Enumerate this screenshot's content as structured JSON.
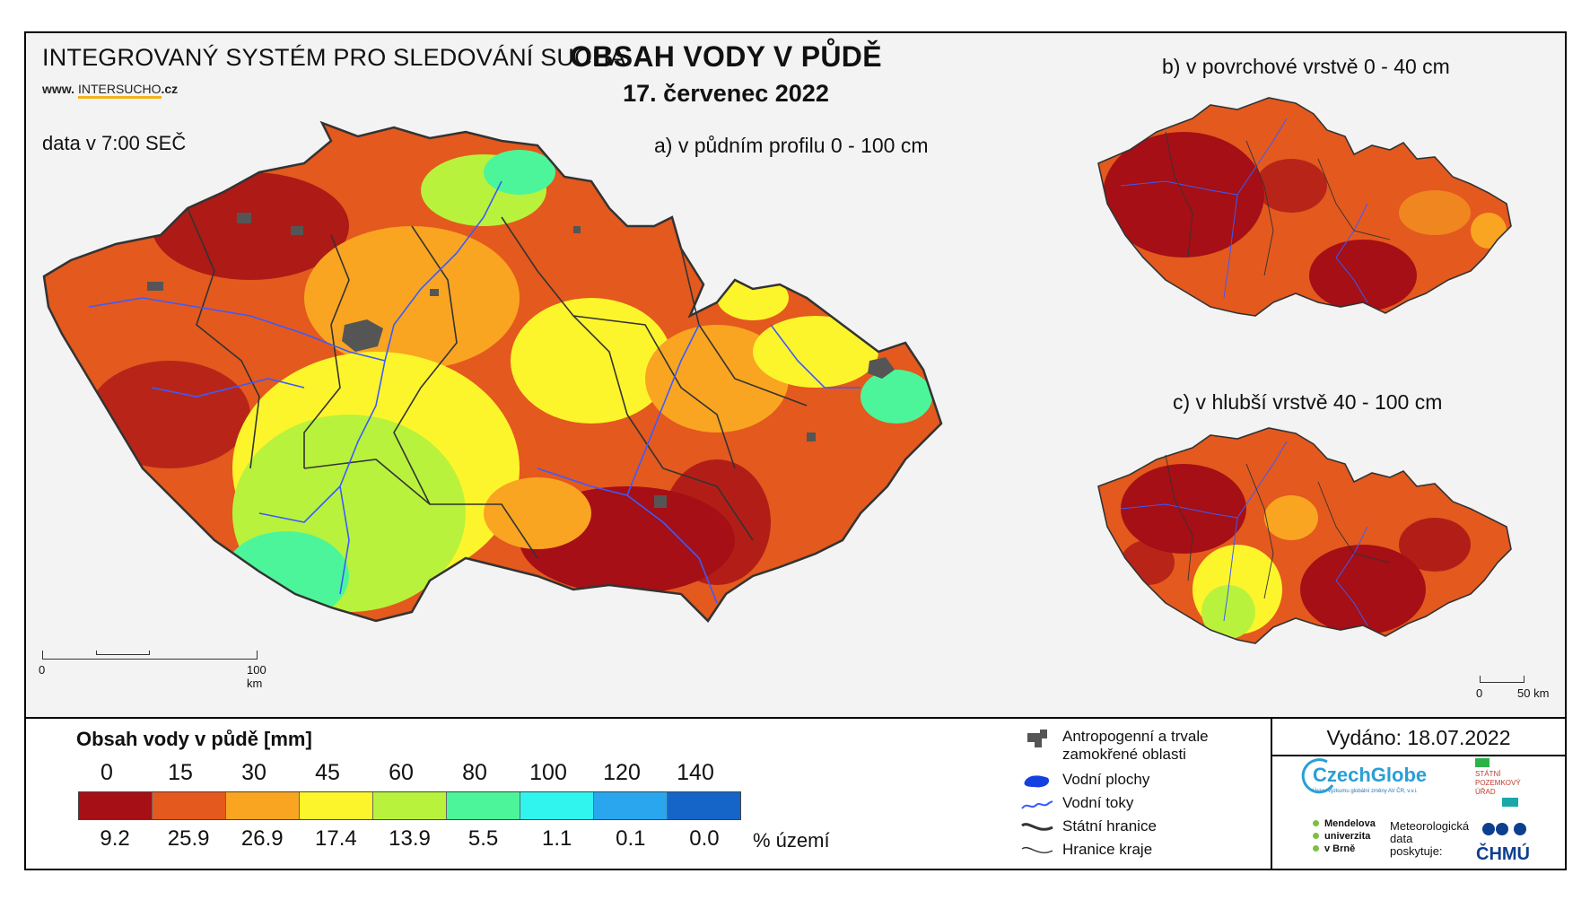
{
  "header": {
    "system_title": "INTEGROVANÝ SYSTÉM PRO SLEDOVÁNÍ SUCHA",
    "website_prefix": "www. ",
    "website_brand": "INTERSUCHO",
    "website_suffix": ".cz",
    "data_time": "data v 7:00 SEČ",
    "title": "OBSAH VODY V PŮDĚ",
    "date": "17. červenec 2022"
  },
  "maps": {
    "a_label": "a) v půdním profilu 0 - 100 cm",
    "b_label": "b) v povrchové vrstvě 0 - 40 cm",
    "c_label": "c) v hlubší vrstvě 40 - 100 cm"
  },
  "scale_main": {
    "start": "0",
    "end": "100 km"
  },
  "scale_small": {
    "start": "0",
    "end": "50 km"
  },
  "legend": {
    "title": "Obsah vody v půdě  [mm]",
    "ticks": [
      "0",
      "15",
      "30",
      "45",
      "60",
      "80",
      "100",
      "120",
      "140"
    ],
    "classes": [
      {
        "color": "#a50f15",
        "percent": "9.2"
      },
      {
        "color": "#e4591e",
        "percent": "25.9"
      },
      {
        "color": "#f9a521",
        "percent": "26.9"
      },
      {
        "color": "#fdf52c",
        "percent": "17.4"
      },
      {
        "color": "#b9f23c",
        "percent": "13.9"
      },
      {
        "color": "#4df59a",
        "percent": "5.5"
      },
      {
        "color": "#2ff5ee",
        "percent": "1.1"
      },
      {
        "color": "#2aa6ee",
        "percent": "0.1"
      },
      {
        "color": "#1565c9",
        "percent": "0.0"
      }
    ],
    "unit_label": "% území"
  },
  "symbols": [
    {
      "icon": "anthropogenic-area-icon",
      "label": "Antropogenní a trvale zamokřené oblasti"
    },
    {
      "icon": "water-body-icon",
      "label": "Vodní plochy"
    },
    {
      "icon": "river-icon",
      "label": "Vodní toky"
    },
    {
      "icon": "state-border-icon",
      "label": "Státní hranice"
    },
    {
      "icon": "region-border-icon",
      "label": "Hranice kraje"
    }
  ],
  "issued": "Vydáno: 18.07.2022",
  "logos": {
    "czechglobe": "CzechGlobe",
    "czechglobe_sub": "Ústav výzkumu globální změny AV ČR, v.v.i.",
    "spu": [
      "STÁTNÍ",
      "POZEMKOVÝ",
      "ÚŘAD"
    ],
    "mendel": [
      "Mendelova",
      "univerzita",
      "v Brně"
    ],
    "meteo": [
      "Meteorologická",
      "data",
      "poskytuje:"
    ],
    "chmu": "ČHMÚ"
  },
  "colors": {
    "dry_extreme": "#a50f15",
    "river": "#3b5bff",
    "border": "#333333",
    "urban": "#555555"
  }
}
